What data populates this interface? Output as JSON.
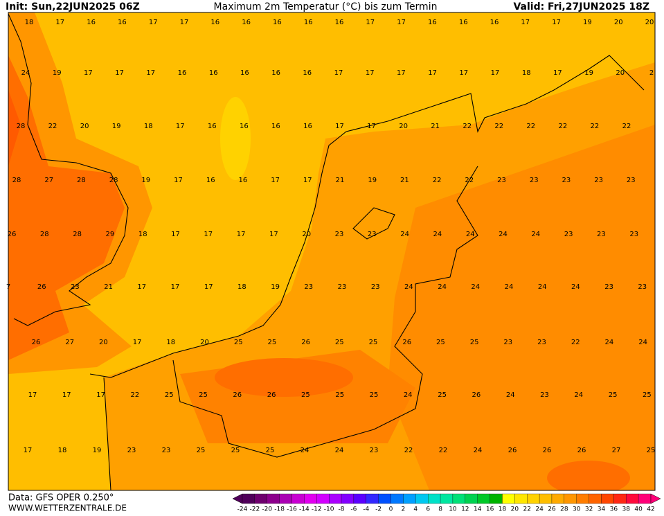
{
  "header": {
    "init": "Init: Sun,22JUN2025 06Z",
    "title": "Maximum 2m Temperatur (°C) bis zum Termin",
    "valid": "Valid: Fri,27JUN2025 18Z"
  },
  "map": {
    "rows": [
      [
        18,
        17,
        16,
        16,
        17,
        17,
        16,
        16,
        16,
        16,
        16,
        17,
        17,
        16,
        16,
        16,
        17,
        17,
        19,
        20,
        20
      ],
      [
        24,
        19,
        17,
        17,
        17,
        16,
        16,
        16,
        16,
        16,
        17,
        17,
        17,
        17,
        17,
        17,
        18,
        17,
        19,
        20,
        2
      ],
      [
        28,
        22,
        20,
        19,
        18,
        17,
        16,
        16,
        16,
        16,
        17,
        17,
        20,
        21,
        22,
        22,
        22,
        22,
        22,
        22
      ],
      [
        28,
        27,
        28,
        28,
        19,
        17,
        16,
        16,
        17,
        17,
        21,
        19,
        21,
        22,
        22,
        23,
        23,
        23,
        23,
        23
      ],
      [
        26,
        28,
        28,
        29,
        18,
        17,
        17,
        17,
        17,
        20,
        23,
        23,
        24,
        24,
        24,
        24,
        24,
        23,
        23,
        23
      ],
      [
        7,
        26,
        23,
        21,
        17,
        17,
        17,
        18,
        19,
        23,
        23,
        23,
        24,
        24,
        24,
        24,
        24,
        24,
        23,
        23
      ],
      [
        26,
        27,
        20,
        17,
        18,
        20,
        25,
        25,
        26,
        25,
        25,
        26,
        25,
        25,
        23,
        23,
        22,
        24,
        24
      ],
      [
        17,
        17,
        17,
        22,
        25,
        25,
        26,
        26,
        25,
        25,
        25,
        24,
        25,
        26,
        24,
        23,
        24,
        25,
        25
      ],
      [
        17,
        18,
        19,
        23,
        23,
        25,
        25,
        25,
        24,
        24,
        23,
        22,
        22,
        24,
        26,
        26,
        26,
        27,
        25
      ]
    ]
  },
  "colorbar": {
    "labels": [
      -24,
      -22,
      -20,
      -18,
      -16,
      -14,
      -12,
      -10,
      -8,
      -6,
      -4,
      -2,
      0,
      2,
      4,
      6,
      8,
      10,
      12,
      14,
      16,
      18,
      20,
      22,
      24,
      26,
      28,
      30,
      32,
      34,
      36,
      38,
      40,
      42
    ],
    "colors": [
      "#50005a",
      "#6e006e",
      "#8c008c",
      "#aa00b4",
      "#c800d2",
      "#e100f0",
      "#d200ff",
      "#aa00ff",
      "#8200ff",
      "#5a00ff",
      "#3228ff",
      "#0050ff",
      "#0078ff",
      "#00a0ff",
      "#00c8f0",
      "#00e1c8",
      "#00e6a0",
      "#00e178",
      "#00d250",
      "#00c828",
      "#00b400",
      "#ffff00",
      "#ffe600",
      "#ffd200",
      "#ffbe00",
      "#ffaa00",
      "#ff9600",
      "#ff7d00",
      "#ff6400",
      "#ff4600",
      "#ff2814",
      "#ff0a3c",
      "#ff0078"
    ]
  },
  "footer": {
    "data": "Data: GFS OPER 0.250°",
    "site": "WWW.WETTERZENTRALE.DE"
  }
}
